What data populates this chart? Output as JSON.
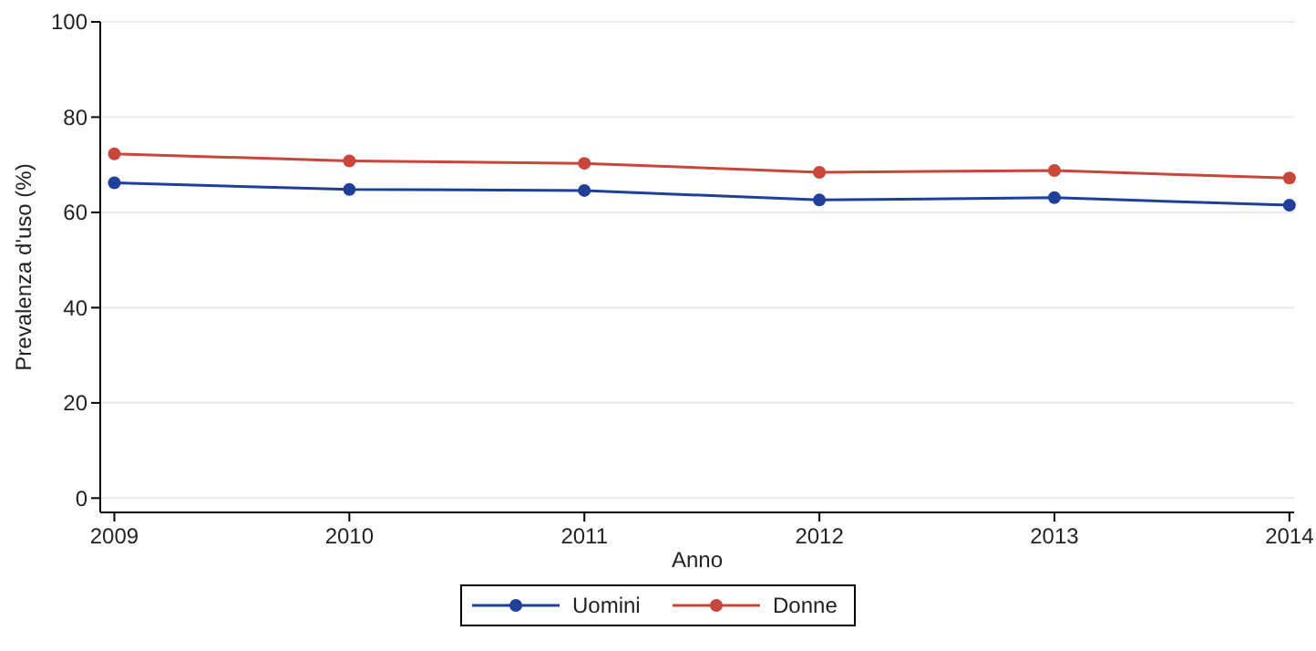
{
  "chart_data": {
    "type": "line",
    "xlabel": "Anno",
    "ylabel": "Prevalenza d'uso (%)",
    "x": [
      2009,
      2010,
      2011,
      2012,
      2013,
      2014
    ],
    "series": [
      {
        "name": "Uomini",
        "color": "#1f3f99",
        "values": [
          66.2,
          64.8,
          64.6,
          62.6,
          63.1,
          61.5
        ]
      },
      {
        "name": "Donne",
        "color": "#c8473a",
        "values": [
          72.3,
          70.8,
          70.3,
          68.4,
          68.8,
          67.2
        ]
      }
    ],
    "xlim": [
      2008.94,
      2014.02
    ],
    "xticks": [
      2009,
      2010,
      2011,
      2012,
      2013,
      2014
    ],
    "ylim": [
      -3,
      100
    ],
    "yticks": [
      0,
      20,
      40,
      60,
      80,
      100
    ],
    "grid": "y",
    "legend": "bottom",
    "marker": "circle",
    "line_style": "solid"
  }
}
